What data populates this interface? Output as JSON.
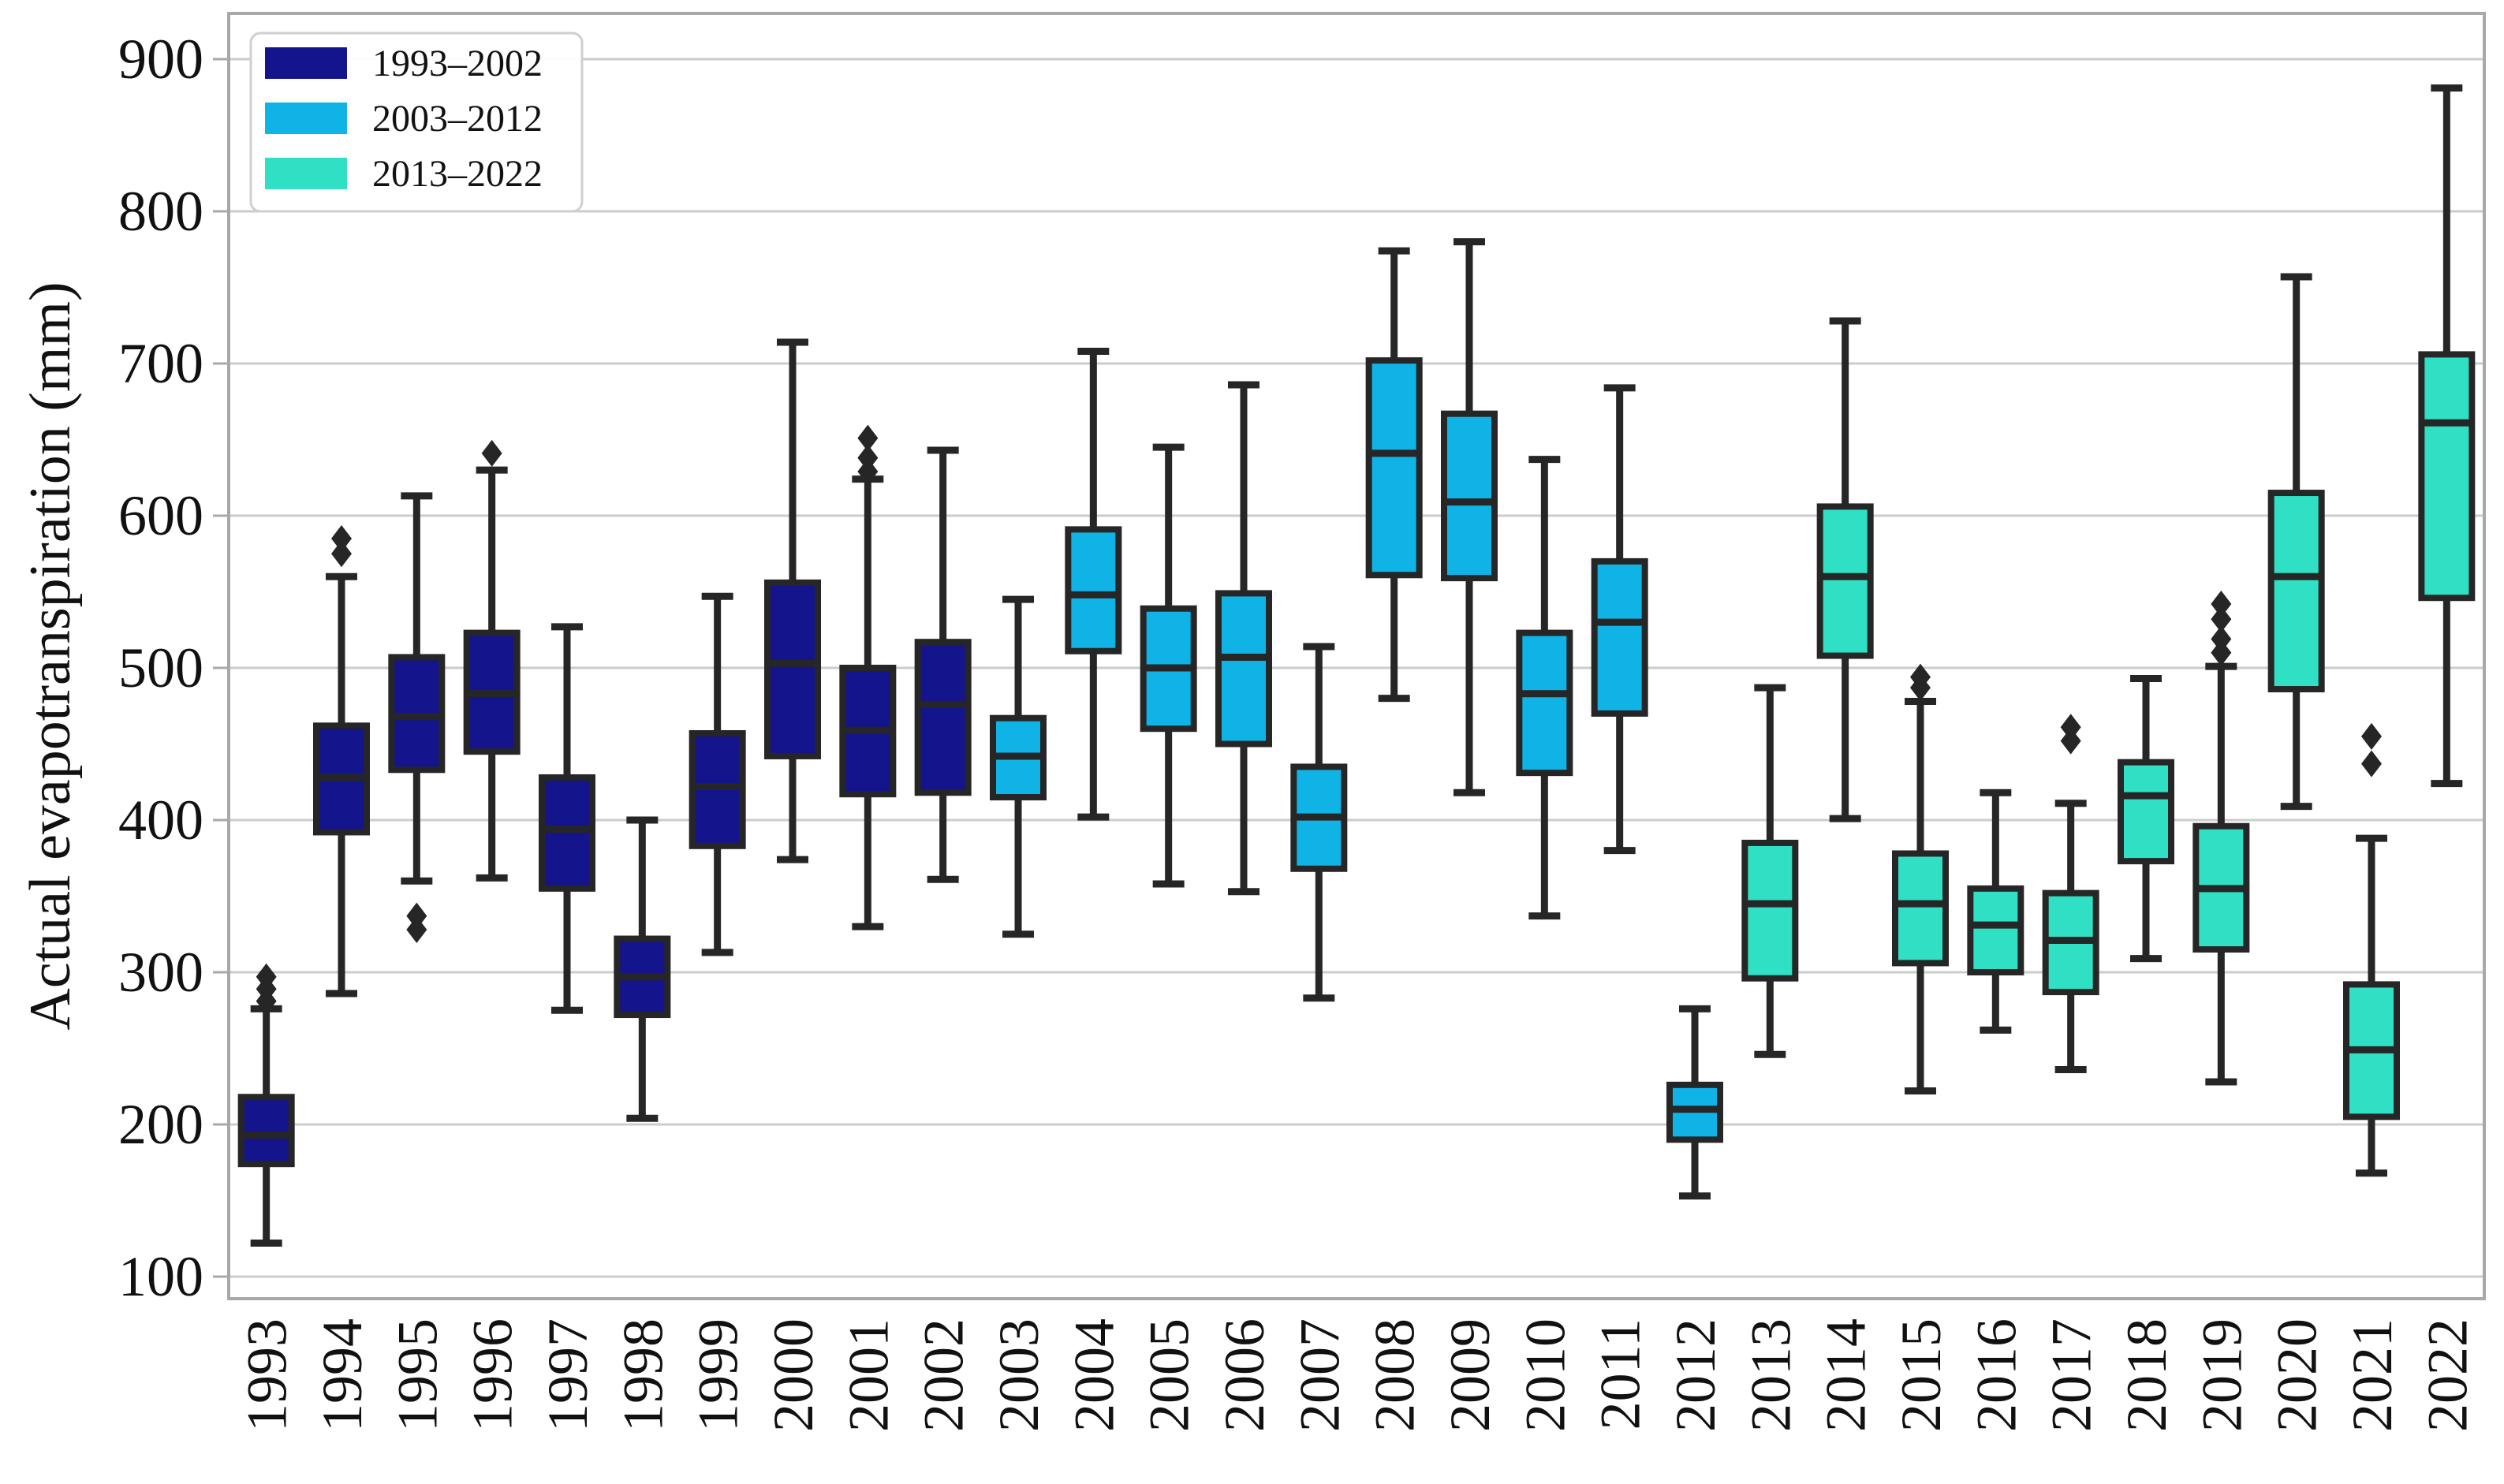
{
  "figure": {
    "ylabel": "Actual evapotranspiration (mm)"
  },
  "legend": {
    "entries": [
      {
        "label": "1993–2002",
        "color": "#14148C"
      },
      {
        "label": "2003–2012",
        "color": "#0FB3E6"
      },
      {
        "label": "2013–2022",
        "color": "#2FE0C4"
      }
    ]
  },
  "style": {
    "grid_color": "#cccccc",
    "border_color": "#a8a8a8",
    "box_stroke": "#262626",
    "text_color": "#111111",
    "legend_border": "#cfcfcf",
    "background": "#ffffff"
  },
  "chart_data": {
    "type": "boxplot",
    "title": "",
    "xlabel": "",
    "ylabel": "Actual evapotranspiration (mm)",
    "yticks": [
      100,
      200,
      300,
      400,
      500,
      600,
      700,
      800,
      900
    ],
    "ylim": [
      86,
      930
    ],
    "grid": true,
    "legend_position": "upper-left",
    "groups": [
      {
        "name": "1993–2002",
        "color": "#14148C"
      },
      {
        "name": "2003–2012",
        "color": "#0FB3E6"
      },
      {
        "name": "2013–2022",
        "color": "#2FE0C4"
      }
    ],
    "categories": [
      "1993",
      "1994",
      "1995",
      "1996",
      "1997",
      "1998",
      "1999",
      "2000",
      "2001",
      "2002",
      "2003",
      "2004",
      "2005",
      "2006",
      "2007",
      "2008",
      "2009",
      "2010",
      "2011",
      "2012",
      "2013",
      "2014",
      "2015",
      "2016",
      "2017",
      "2018",
      "2019",
      "2020",
      "2021",
      "2022"
    ],
    "series": [
      {
        "year": "1993",
        "group": 0,
        "low": 122,
        "q1": 174,
        "median": 193,
        "q3": 218,
        "high": 276,
        "outliers": [
          281,
          289,
          297
        ]
      },
      {
        "year": "1994",
        "group": 0,
        "low": 286,
        "q1": 392,
        "median": 428,
        "q3": 462,
        "high": 560,
        "outliers": [
          575,
          585
        ]
      },
      {
        "year": "1995",
        "group": 0,
        "low": 360,
        "q1": 433,
        "median": 468,
        "q3": 507,
        "high": 613,
        "outliers": [
          328,
          337
        ]
      },
      {
        "year": "1996",
        "group": 0,
        "low": 362,
        "q1": 445,
        "median": 483,
        "q3": 523,
        "high": 630,
        "outliers": [
          641
        ]
      },
      {
        "year": "1997",
        "group": 0,
        "low": 275,
        "q1": 355,
        "median": 394,
        "q3": 428,
        "high": 527,
        "outliers": []
      },
      {
        "year": "1998",
        "group": 0,
        "low": 204,
        "q1": 272,
        "median": 297,
        "q3": 322,
        "high": 400,
        "outliers": []
      },
      {
        "year": "1999",
        "group": 0,
        "low": 313,
        "q1": 383,
        "median": 422,
        "q3": 457,
        "high": 547,
        "outliers": []
      },
      {
        "year": "2000",
        "group": 0,
        "low": 374,
        "q1": 442,
        "median": 503,
        "q3": 556,
        "high": 714,
        "outliers": []
      },
      {
        "year": "2001",
        "group": 0,
        "low": 330,
        "q1": 417,
        "median": 459,
        "q3": 500,
        "high": 624,
        "outliers": [
          629,
          638,
          651
        ]
      },
      {
        "year": "2002",
        "group": 0,
        "low": 361,
        "q1": 418,
        "median": 476,
        "q3": 517,
        "high": 643,
        "outliers": []
      },
      {
        "year": "2003",
        "group": 1,
        "low": 325,
        "q1": 415,
        "median": 442,
        "q3": 467,
        "high": 545,
        "outliers": []
      },
      {
        "year": "2004",
        "group": 1,
        "low": 402,
        "q1": 511,
        "median": 548,
        "q3": 591,
        "high": 708,
        "outliers": []
      },
      {
        "year": "2005",
        "group": 1,
        "low": 358,
        "q1": 460,
        "median": 500,
        "q3": 539,
        "high": 645,
        "outliers": []
      },
      {
        "year": "2006",
        "group": 1,
        "low": 353,
        "q1": 450,
        "median": 507,
        "q3": 549,
        "high": 686,
        "outliers": []
      },
      {
        "year": "2007",
        "group": 1,
        "low": 283,
        "q1": 368,
        "median": 402,
        "q3": 435,
        "high": 514,
        "outliers": []
      },
      {
        "year": "2008",
        "group": 1,
        "low": 480,
        "q1": 561,
        "median": 641,
        "q3": 702,
        "high": 774,
        "outliers": []
      },
      {
        "year": "2009",
        "group": 1,
        "low": 418,
        "q1": 559,
        "median": 609,
        "q3": 667,
        "high": 780,
        "outliers": []
      },
      {
        "year": "2010",
        "group": 1,
        "low": 337,
        "q1": 431,
        "median": 483,
        "q3": 523,
        "high": 637,
        "outliers": []
      },
      {
        "year": "2011",
        "group": 1,
        "low": 380,
        "q1": 470,
        "median": 530,
        "q3": 570,
        "high": 684,
        "outliers": []
      },
      {
        "year": "2012",
        "group": 1,
        "low": 153,
        "q1": 190,
        "median": 210,
        "q3": 226,
        "high": 276,
        "outliers": []
      },
      {
        "year": "2013",
        "group": 2,
        "low": 246,
        "q1": 296,
        "median": 345,
        "q3": 385,
        "high": 487,
        "outliers": []
      },
      {
        "year": "2014",
        "group": 2,
        "low": 401,
        "q1": 508,
        "median": 560,
        "q3": 606,
        "high": 728,
        "outliers": []
      },
      {
        "year": "2015",
        "group": 2,
        "low": 222,
        "q1": 306,
        "median": 345,
        "q3": 378,
        "high": 478,
        "outliers": [
          487,
          494
        ]
      },
      {
        "year": "2016",
        "group": 2,
        "low": 262,
        "q1": 300,
        "median": 331,
        "q3": 355,
        "high": 418,
        "outliers": []
      },
      {
        "year": "2017",
        "group": 2,
        "low": 236,
        "q1": 287,
        "median": 321,
        "q3": 352,
        "high": 411,
        "outliers": [
          452,
          461
        ]
      },
      {
        "year": "2018",
        "group": 2,
        "low": 309,
        "q1": 373,
        "median": 416,
        "q3": 438,
        "high": 493,
        "outliers": []
      },
      {
        "year": "2019",
        "group": 2,
        "low": 228,
        "q1": 315,
        "median": 355,
        "q3": 396,
        "high": 501,
        "outliers": [
          510,
          519,
          532,
          542
        ]
      },
      {
        "year": "2020",
        "group": 2,
        "low": 409,
        "q1": 486,
        "median": 560,
        "q3": 615,
        "high": 757,
        "outliers": []
      },
      {
        "year": "2021",
        "group": 2,
        "low": 168,
        "q1": 205,
        "median": 249,
        "q3": 292,
        "high": 388,
        "outliers": [
          437,
          455
        ]
      },
      {
        "year": "2022",
        "group": 2,
        "low": 424,
        "q1": 546,
        "median": 661,
        "q3": 706,
        "high": 881,
        "outliers": []
      }
    ]
  }
}
